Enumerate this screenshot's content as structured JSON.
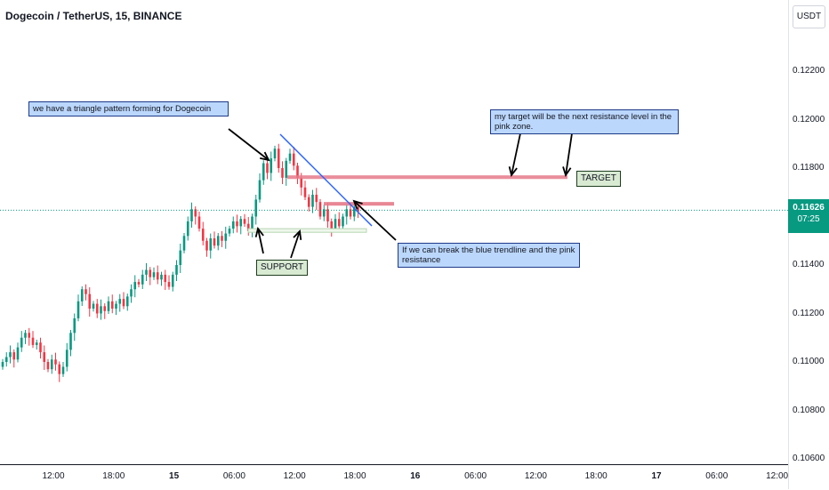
{
  "header": {
    "symbol_title": "Dogecoin / TetherUS, 15, BINANCE"
  },
  "price_axis": {
    "currency": "USDT",
    "ticks": [
      "0.12200",
      "0.12000",
      "0.11800",
      "0.11600",
      "0.11400",
      "0.11200",
      "0.11000",
      "0.10800",
      "0.10600"
    ],
    "last_price": "0.11626",
    "countdown": "07:25",
    "last_price_color": "#089981"
  },
  "time_axis": {
    "ticks": [
      "12:00",
      "18:00",
      "15",
      "06:00",
      "12:00",
      "18:00",
      "16",
      "06:00",
      "12:00",
      "18:00",
      "17",
      "06:00",
      "12:00"
    ]
  },
  "annotations": {
    "triangle_note": "we have a triangle pattern forming for Dogecoin",
    "target_note": "my target will be the next resistance level in the pink zone.",
    "break_note": "If we can break the blue trendline and the pink resistance",
    "support_label": "SUPPORT",
    "target_label": "TARGET"
  },
  "colors": {
    "up_candle": "#089981",
    "down_candle": "#f23645",
    "trendline": "#2962ff",
    "resistance_zone": "#e57a8a",
    "support_zone": "#b7d6b1"
  },
  "chart_data": {
    "type": "candlestick",
    "symbol": "Dogecoin / TetherUS",
    "interval": "15",
    "exchange": "BINANCE",
    "ylim": [
      0.106,
      0.1235
    ],
    "last_price": 0.11626,
    "close_path": [
      0.11,
      0.1102,
      0.1104,
      0.1101,
      0.1106,
      0.111,
      0.1112,
      0.111,
      0.1107,
      0.1108,
      0.1104,
      0.11,
      0.1097,
      0.1101,
      0.1099,
      0.1095,
      0.1098,
      0.1105,
      0.1112,
      0.1118,
      0.1125,
      0.113,
      0.1128,
      0.1122,
      0.1124,
      0.112,
      0.1123,
      0.1121,
      0.1125,
      0.1122,
      0.1124,
      0.1126,
      0.1123,
      0.1127,
      0.113,
      0.1133,
      0.1132,
      0.1136,
      0.1138,
      0.1135,
      0.1137,
      0.1134,
      0.1136,
      0.1133,
      0.1131,
      0.1136,
      0.114,
      0.1146,
      0.1152,
      0.1158,
      0.1163,
      0.116,
      0.1155,
      0.115,
      0.1146,
      0.1151,
      0.1148,
      0.1152,
      0.115,
      0.1153,
      0.1155,
      0.1158,
      0.1156,
      0.1159,
      0.1157,
      0.1154,
      0.116,
      0.1167,
      0.1175,
      0.1182,
      0.1178,
      0.1184,
      0.1188,
      0.118,
      0.1176,
      0.1183,
      0.1186,
      0.1181,
      0.1176,
      0.1172,
      0.1168,
      0.1164,
      0.1169,
      0.1166,
      0.116,
      0.1163,
      0.1158,
      0.1155,
      0.1159,
      0.1156,
      0.116,
      0.1163,
      0.116,
      0.1164,
      0.1162
    ],
    "resistance_zone": [
      0.11755,
      0.1177
    ],
    "pink_resistance": [
      0.11645,
      0.1166
    ],
    "support_zone": [
      0.11535,
      0.1155
    ]
  }
}
